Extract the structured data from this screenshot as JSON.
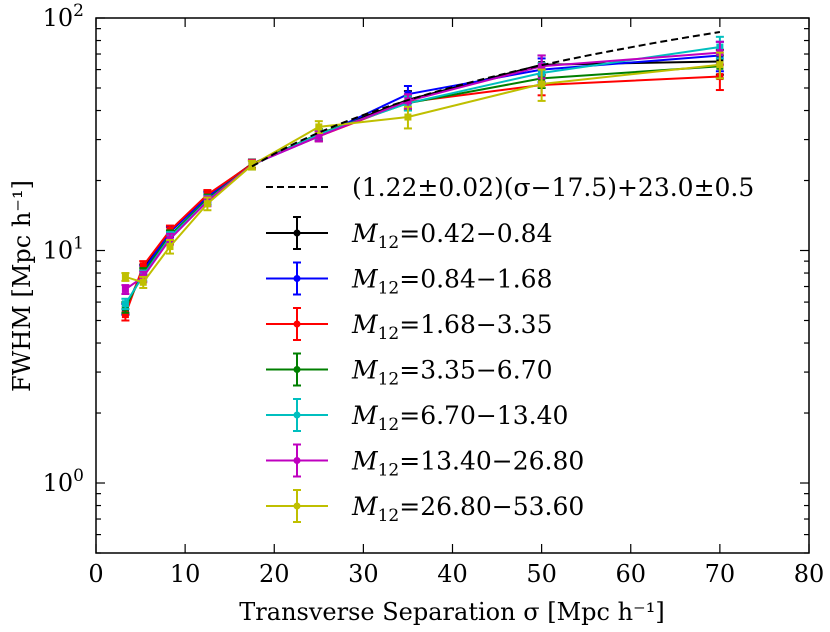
{
  "chart_data": {
    "type": "line",
    "xlabel": "Transverse Separation σ [Mpc h⁻¹]",
    "ylabel": "FWHM [Mpc h⁻¹]",
    "xlim": [
      0,
      80
    ],
    "ylim": [
      0.5,
      100
    ],
    "yscale": "log",
    "xticks": [
      0,
      10,
      20,
      30,
      40,
      50,
      60,
      70,
      80
    ],
    "xtick_labels": [
      "0",
      "10",
      "20",
      "30",
      "40",
      "50",
      "60",
      "70",
      "80"
    ],
    "ytick_labels": [
      {
        "value": 100,
        "base": "10",
        "exp": "2"
      },
      {
        "value": 10,
        "base": "10",
        "exp": "1"
      },
      {
        "value": 1,
        "base": "10",
        "exp": "0"
      }
    ],
    "grid": false,
    "legend_position": "lower-right",
    "fit": {
      "label": "(1.22±0.02)(σ−17.5)+23.0±0.5",
      "slope": 1.22,
      "pivot": 17.5,
      "intercept": 23.0,
      "x_range": [
        17.5,
        70
      ],
      "color": "#000000",
      "style": "dashed"
    },
    "x": [
      3.3,
      5.3,
      8.3,
      12.5,
      17.5,
      25,
      35,
      50,
      70
    ],
    "series": [
      {
        "name": "M12=0.42−0.84",
        "range": "0.42−0.84",
        "color": "#000000",
        "values": [
          5.6,
          8.3,
          12.1,
          17.2,
          23.6,
          31.5,
          44.5,
          63.0,
          65.0
        ],
        "errors": [
          0.3,
          0.4,
          0.6,
          0.8,
          1.0,
          1.5,
          4.0,
          6.0,
          8.0
        ]
      },
      {
        "name": "M12=0.84−1.68",
        "range": "0.84−1.68",
        "color": "#0000ff",
        "values": [
          5.6,
          8.2,
          12.0,
          17.0,
          23.4,
          31.0,
          47.0,
          60.0,
          69.0
        ],
        "errors": [
          0.3,
          0.4,
          0.6,
          0.8,
          1.0,
          1.5,
          4.0,
          7.0,
          10.0
        ]
      },
      {
        "name": "M12=1.68−3.35",
        "range": "1.68−3.35",
        "color": "#ff0000",
        "values": [
          5.3,
          8.6,
          12.2,
          17.4,
          23.5,
          31.0,
          43.5,
          51.5,
          56.0
        ],
        "errors": [
          0.3,
          0.4,
          0.6,
          0.8,
          1.0,
          1.5,
          3.0,
          5.0,
          7.0
        ]
      },
      {
        "name": "M12=3.35−6.70",
        "range": "3.35−6.70",
        "color": "#007f00",
        "values": [
          5.7,
          8.0,
          11.6,
          16.6,
          23.3,
          31.8,
          43.0,
          55.0,
          62.0
        ],
        "errors": [
          0.3,
          0.4,
          0.6,
          0.8,
          1.0,
          1.5,
          3.0,
          5.0,
          7.0
        ]
      },
      {
        "name": "M12=6.70−13.40",
        "range": "6.70−13.40",
        "color": "#00bfbf",
        "values": [
          5.9,
          7.8,
          11.4,
          16.4,
          23.3,
          31.6,
          43.0,
          58.0,
          75.0
        ],
        "errors": [
          0.3,
          0.4,
          0.6,
          0.8,
          1.0,
          1.5,
          3.0,
          6.0,
          8.0
        ]
      },
      {
        "name": "M12=13.40−26.80",
        "range": "13.40−26.80",
        "color": "#bf00bf",
        "values": [
          6.8,
          7.7,
          11.2,
          16.3,
          23.4,
          31.0,
          44.0,
          62.0,
          71.0
        ],
        "errors": [
          0.3,
          0.4,
          0.6,
          0.8,
          1.0,
          1.5,
          3.0,
          7.0,
          8.0
        ]
      },
      {
        "name": "M12=26.80−53.60",
        "range": "26.80−53.60",
        "color": "#bfbf00",
        "values": [
          7.7,
          7.3,
          10.4,
          15.9,
          23.3,
          34.0,
          37.5,
          52.0,
          63.0
        ],
        "errors": [
          0.3,
          0.4,
          0.7,
          1.0,
          1.0,
          2.0,
          4.0,
          8.0,
          8.0
        ]
      }
    ]
  }
}
